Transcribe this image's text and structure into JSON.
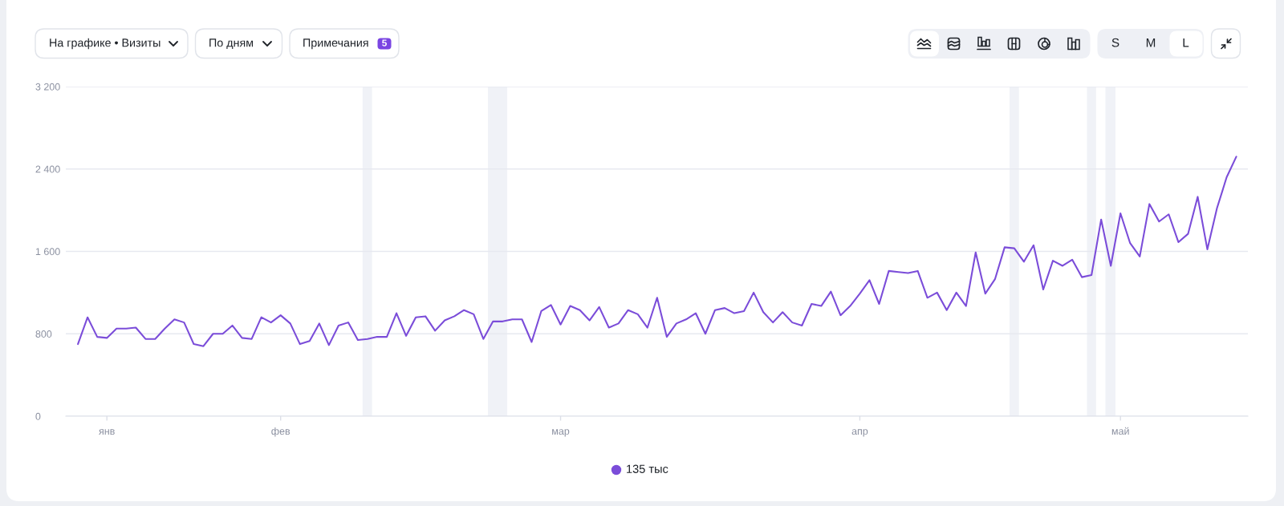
{
  "chart_data": {
    "type": "line",
    "categories": [
      null,
      null,
      null,
      "янв",
      null,
      null,
      null,
      null,
      null,
      null,
      null,
      null,
      null,
      null,
      null,
      null,
      null,
      null,
      null,
      null,
      null,
      "фев",
      null,
      null,
      null,
      null,
      null,
      null,
      null,
      null,
      null,
      null,
      null,
      null,
      null,
      null,
      null,
      null,
      null,
      null,
      null,
      null,
      null,
      null,
      null,
      null,
      null,
      null,
      null,
      null,
      "мар",
      null,
      null,
      null,
      null,
      null,
      null,
      null,
      null,
      null,
      null,
      null,
      null,
      null,
      null,
      null,
      null,
      null,
      null,
      null,
      null,
      null,
      null,
      null,
      null,
      null,
      null,
      null,
      null,
      null,
      null,
      "апр",
      null,
      null,
      null,
      null,
      null,
      null,
      null,
      null,
      null,
      null,
      null,
      null,
      null,
      null,
      null,
      null,
      null,
      null,
      null,
      null,
      null,
      null,
      null,
      null,
      null,
      null,
      "май",
      null,
      null,
      null,
      null,
      null,
      null,
      null,
      null,
      null,
      null,
      null,
      null
    ],
    "series": [
      {
        "color": "#7b4dd9",
        "values": [
          700,
          960,
          770,
          760,
          850,
          850,
          860,
          750,
          750,
          850,
          940,
          910,
          700,
          680,
          800,
          800,
          880,
          760,
          750,
          960,
          910,
          980,
          900,
          700,
          730,
          900,
          690,
          880,
          910,
          740,
          750,
          770,
          770,
          1000,
          780,
          960,
          970,
          830,
          930,
          970,
          1030,
          990,
          750,
          920,
          920,
          940,
          940,
          720,
          1020,
          1080,
          890,
          1070,
          1030,
          930,
          1060,
          860,
          900,
          1030,
          990,
          860,
          1150,
          770,
          900,
          940,
          1000,
          800,
          1030,
          1050,
          1000,
          1020,
          1200,
          1010,
          910,
          1010,
          910,
          880,
          1090,
          1070,
          1210,
          980,
          1070,
          1190,
          1320,
          1090,
          1410,
          1400,
          1390,
          1410,
          1150,
          1200,
          1030,
          1200,
          1070,
          1590,
          1190,
          1330,
          1640,
          1630,
          1500,
          1660,
          1230,
          1510,
          1460,
          1520,
          1350,
          1370,
          1910,
          1460,
          1970,
          1680,
          1550,
          2060,
          1890,
          1960,
          1690,
          1770,
          2130,
          1620,
          2020,
          2320,
          2520
        ]
      }
    ],
    "ylim": [
      0,
      3200
    ],
    "yticks": [
      0,
      800,
      {
        "value": 1600,
        "label": "1 600"
      },
      {
        "value": 2400,
        "label": "2 400"
      },
      {
        "value": 3200,
        "label": "3 200"
      }
    ],
    "grid": "y",
    "annotations": [
      "На графике • Визиты",
      "По дням",
      "Примечания",
      "5",
      "S",
      "M",
      "L",
      "135 тыс"
    ]
  }
}
